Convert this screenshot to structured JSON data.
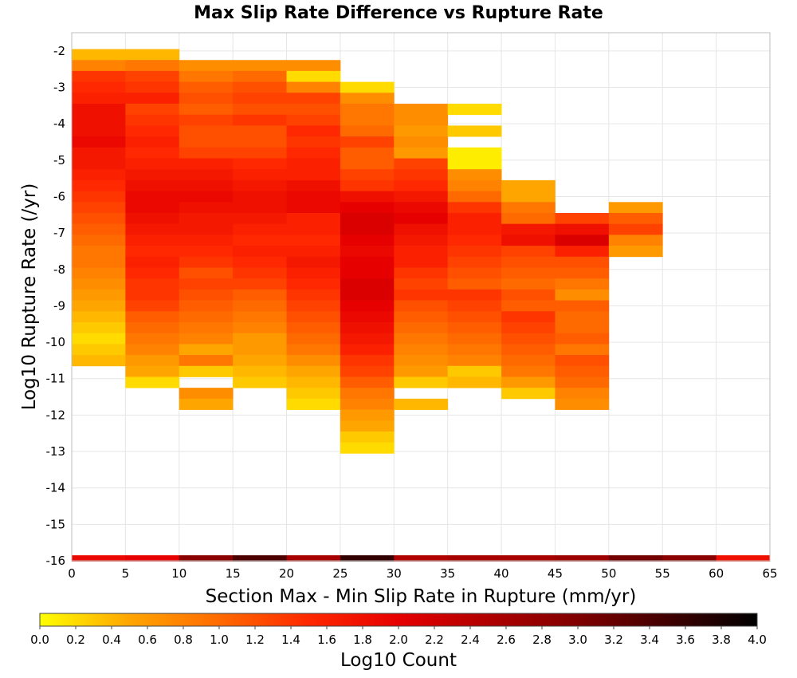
{
  "chart_data": {
    "type": "heatmap",
    "title": "Max Slip Rate Difference vs Rupture Rate",
    "xlabel": "Section Max - Min Slip Rate in Rupture (mm/yr)",
    "ylabel": "Log10 Rupture Rate (/yr)",
    "xlim": [
      0,
      65
    ],
    "ylim": [
      -16,
      -1.5
    ],
    "x_ticks": [
      0,
      5,
      10,
      15,
      20,
      25,
      30,
      35,
      40,
      45,
      50,
      55,
      60,
      65
    ],
    "y_ticks": [
      -2,
      -3,
      -4,
      -5,
      -6,
      -7,
      -8,
      -9,
      -10,
      -11,
      -12,
      -13,
      -14,
      -15,
      -16
    ],
    "x_bin_width": 5,
    "y_bin_height": 0.3,
    "grid": true,
    "colorbar": {
      "label": "Log10 Count",
      "range": [
        0,
        4
      ],
      "ticks": [
        "0.0",
        "0.2",
        "0.4",
        "0.6",
        "0.8",
        "1.0",
        "1.2",
        "1.4",
        "1.6",
        "1.8",
        "2.0",
        "2.2",
        "2.4",
        "2.6",
        "2.8",
        "3.0",
        "3.2",
        "3.4",
        "3.6",
        "3.8",
        "4.0"
      ],
      "colors": [
        "#ffff00",
        "#ffa500",
        "#ff6a00",
        "#ff2800",
        "#e60000",
        "#b00000",
        "#800000",
        "#400000",
        "#000000"
      ],
      "placement": "bottom"
    },
    "columns": [
      {
        "x0": 0,
        "y_top": -1.95,
        "values": [
          0.4,
          0.8,
          1.4,
          1.5,
          1.6,
          1.8,
          1.8,
          1.8,
          1.9,
          1.7,
          1.7,
          1.6,
          1.5,
          1.4,
          1.3,
          1.2,
          1.1,
          1.0,
          0.9,
          0.9,
          0.8,
          0.7,
          0.6,
          0.5,
          0.4,
          0.3,
          0.2,
          0.3,
          0.4
        ]
      },
      {
        "x0": 5,
        "y_top": -1.95,
        "values": [
          0.4,
          0.9,
          1.3,
          1.4,
          1.6,
          1.3,
          1.4,
          1.5,
          1.6,
          1.5,
          1.6,
          1.7,
          1.8,
          1.9,
          1.9,
          1.8,
          1.7,
          1.6,
          1.5,
          1.6,
          1.5,
          1.4,
          1.4,
          1.3,
          1.1,
          1.0,
          0.9,
          0.8,
          0.6,
          0.5,
          0.2
        ]
      },
      {
        "x0": 10,
        "y_top": -2.25,
        "values": [
          0.7,
          0.9,
          1.1,
          1.2,
          1.1,
          1.3,
          1.2,
          1.2,
          1.3,
          1.6,
          1.7,
          1.8,
          1.9,
          1.8,
          1.7,
          1.7,
          1.6,
          1.5,
          1.4,
          1.2,
          1.3,
          1.2,
          1.1,
          1.0,
          0.9,
          0.8,
          0.5,
          0.9,
          0.3,
          null,
          0.7,
          0.5
        ]
      },
      {
        "x0": 15,
        "y_top": -2.25,
        "values": [
          0.7,
          1.0,
          1.2,
          1.3,
          1.2,
          1.4,
          1.2,
          1.2,
          1.3,
          1.5,
          1.6,
          1.7,
          1.8,
          1.8,
          1.7,
          1.6,
          1.5,
          1.6,
          1.5,
          1.4,
          1.3,
          1.1,
          1.0,
          0.9,
          0.8,
          0.6,
          0.6,
          0.5,
          0.4,
          0.3
        ]
      },
      {
        "x0": 20,
        "y_top": -2.25,
        "values": [
          0.7,
          0.2,
          0.8,
          1.3,
          1.2,
          1.3,
          1.5,
          1.4,
          1.5,
          1.6,
          1.6,
          1.8,
          1.9,
          1.9,
          1.6,
          1.6,
          1.5,
          1.6,
          1.7,
          1.6,
          1.5,
          1.4,
          1.3,
          1.2,
          1.1,
          1.0,
          0.9,
          0.7,
          0.5,
          0.4,
          0.3,
          0.2
        ]
      },
      {
        "x0": 25,
        "y_top": -2.85,
        "values": [
          0.2,
          0.7,
          0.9,
          0.9,
          1.0,
          1.3,
          1.1,
          1.1,
          1.3,
          1.4,
          1.8,
          2.0,
          2.1,
          2.1,
          2.0,
          1.9,
          2.0,
          2.0,
          2.1,
          2.1,
          2.0,
          1.9,
          1.8,
          1.7,
          1.6,
          1.4,
          1.3,
          1.1,
          0.9,
          0.8,
          0.6,
          0.5,
          0.3,
          0.2
        ]
      },
      {
        "x0": 30,
        "y_top": -3.45,
        "values": [
          0.7,
          0.7,
          0.6,
          0.7,
          0.6,
          1.3,
          1.4,
          1.5,
          1.7,
          1.9,
          2.0,
          1.8,
          1.7,
          1.6,
          1.6,
          1.4,
          1.3,
          1.4,
          1.2,
          1.1,
          1.0,
          0.9,
          0.8,
          0.7,
          0.6,
          0.3,
          null,
          0.4
        ]
      },
      {
        "x0": 35,
        "y_top": -3.45,
        "values": [
          0.2,
          null,
          0.3,
          null,
          0.1,
          0.1,
          0.7,
          0.8,
          1.0,
          1.4,
          1.6,
          1.6,
          1.5,
          1.4,
          1.3,
          1.2,
          1.1,
          1.4,
          1.3,
          1.2,
          1.1,
          1.0,
          0.9,
          0.8,
          0.3,
          0.4
        ]
      },
      {
        "x0": 40,
        "y_top": -5.55,
        "values": [
          0.5,
          0.5,
          0.9,
          1.0,
          1.7,
          1.8,
          1.3,
          1.2,
          1.1,
          1.0,
          1.2,
          1.1,
          1.4,
          1.3,
          1.2,
          1.1,
          1.0,
          0.9,
          0.6,
          0.3
        ]
      },
      {
        "x0": 45,
        "y_top": -6.45,
        "values": [
          1.3,
          1.8,
          2.1,
          1.6,
          1.2,
          1.1,
          0.9,
          0.7,
          1.1,
          1.0,
          1.0,
          1.1,
          0.9,
          1.2,
          1.1,
          1.0,
          0.8,
          0.7
        ]
      },
      {
        "x0": 50,
        "y_top": -6.15,
        "values": [
          0.6,
          1.1,
          1.3,
          0.8,
          0.6
        ]
      }
    ],
    "bottom_row": {
      "y0": -16,
      "values": [
        1.9,
        2.0,
        2.9,
        3.4,
        2.6,
        3.6,
        2.5,
        2.6,
        2.6,
        2.7,
        3.1,
        2.9,
        1.8
      ]
    }
  }
}
